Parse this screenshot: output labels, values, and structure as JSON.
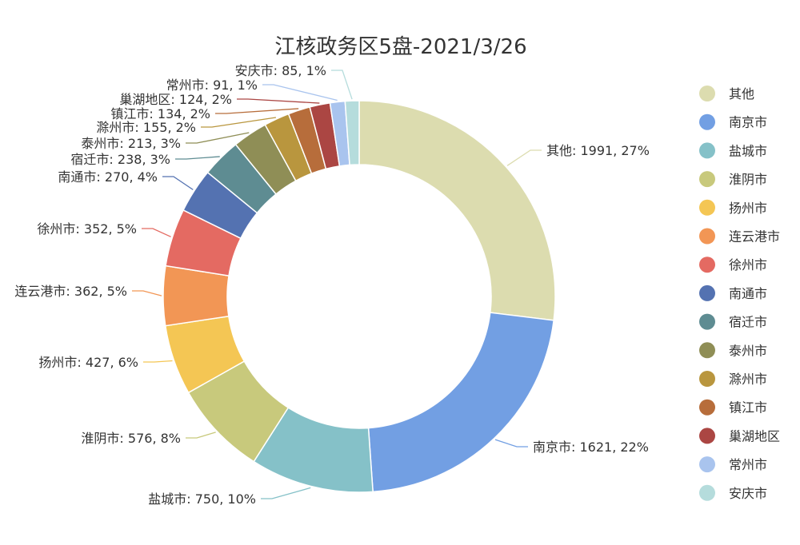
{
  "chart_data": {
    "type": "pie",
    "variant": "donut",
    "title": "江核政务区5盘-2021/3/26",
    "legend_position": "right",
    "slices": [
      {
        "name": "其他",
        "value": 1991,
        "label": "其他: 1991, 27%",
        "color": "#dcdcaf"
      },
      {
        "name": "南京市",
        "value": 1621,
        "label": "南京市: 1621, 22%",
        "color": "#729fe3"
      },
      {
        "name": "盐城市",
        "value": 750,
        "label": "盐城市: 750, 10%",
        "color": "#85c1c8"
      },
      {
        "name": "淮阴市",
        "value": 576,
        "label": "淮阴市: 576, 8%",
        "color": "#c8c97c"
      },
      {
        "name": "扬州市",
        "value": 427,
        "label": "扬州市: 427, 6%",
        "color": "#f4c654"
      },
      {
        "name": "连云港市",
        "value": 362,
        "label": "连云港市: 362, 5%",
        "color": "#f29655"
      },
      {
        "name": "徐州市",
        "value": 352,
        "label": "徐州市: 352, 5%",
        "color": "#e46a62"
      },
      {
        "name": "南通市",
        "value": 270,
        "label": "南通市: 270, 4%",
        "color": "#5472b1"
      },
      {
        "name": "宿迁市",
        "value": 238,
        "label": "宿迁市: 238, 3%",
        "color": "#5e8c92"
      },
      {
        "name": "泰州市",
        "value": 213,
        "label": "泰州市: 213, 3%",
        "color": "#8f8e56"
      },
      {
        "name": "滁州市",
        "value": 155,
        "label": "滁州市: 155, 2%",
        "color": "#b9963e"
      },
      {
        "name": "镇江市",
        "value": 134,
        "label": "镇江市: 134, 2%",
        "color": "#b76d3b"
      },
      {
        "name": "巢湖地区",
        "value": 124,
        "label": "巢湖地区: 124, 2%",
        "color": "#ab4643"
      },
      {
        "name": "常州市",
        "value": 91,
        "label": "常州市: 91, 1%",
        "color": "#a9c4ee"
      },
      {
        "name": "安庆市",
        "value": 85,
        "label": "安庆市: 85, 1%",
        "color": "#b5dcdc"
      }
    ]
  }
}
